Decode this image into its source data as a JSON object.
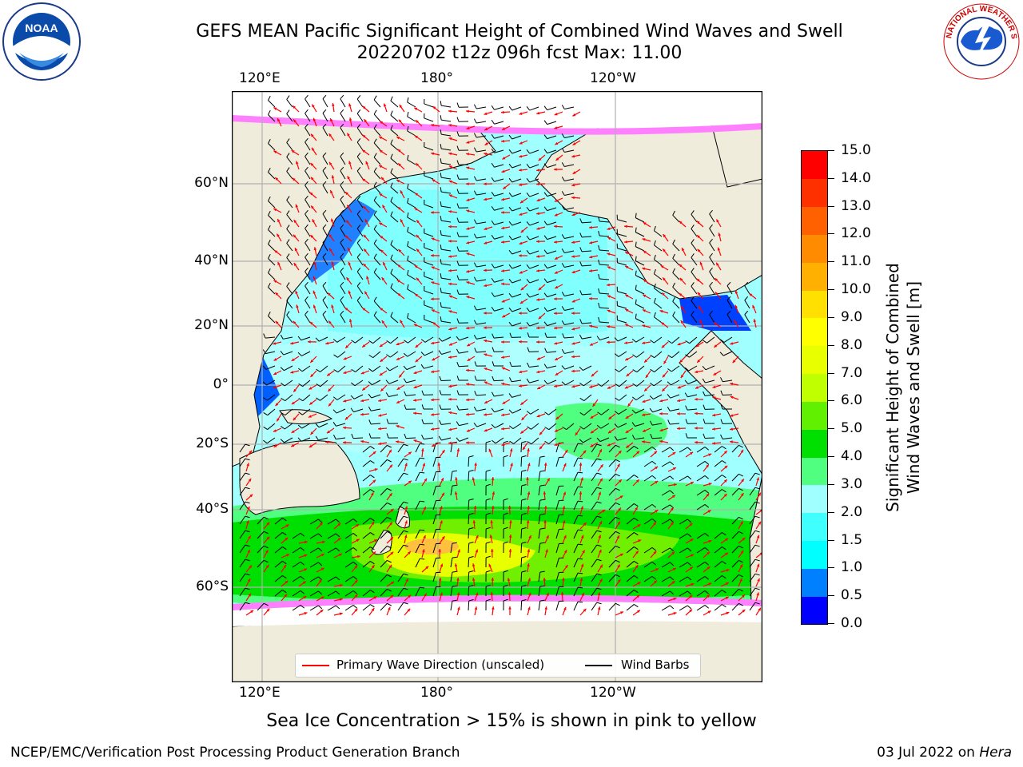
{
  "title_line1": "GEFS MEAN Pacific Significant Height of Combined Wind Waves and Swell",
  "title_line2": "20220702 t12z 096h fcst   Max: 11.00",
  "logos": {
    "left": {
      "name": "noaa-logo-icon",
      "text": "NOAA"
    },
    "right": {
      "name": "nws-logo-icon",
      "text": "NATIONAL WEATHER SERVICE"
    }
  },
  "map": {
    "lon_labels": [
      "120°E",
      "180°",
      "120°W"
    ],
    "lat_labels": [
      "60°N",
      "40°N",
      "20°N",
      "0°",
      "20°S",
      "40°S",
      "60°S"
    ],
    "legend": {
      "wave_direction": "Primary Wave Direction (unscaled)",
      "wind_barbs": "Wind Barbs"
    }
  },
  "colorbar": {
    "title_line1": "Significant Height of Combined",
    "title_line2": "Wind Waves and Swell [m]",
    "ticks": [
      "0.0",
      "0.5",
      "1.0",
      "1.5",
      "2.0",
      "3.0",
      "4.0",
      "5.0",
      "6.0",
      "7.0",
      "8.0",
      "9.0",
      "10.0",
      "11.0",
      "12.0",
      "13.0",
      "14.0",
      "15.0"
    ],
    "colors": [
      "#0000ff",
      "#0080ff",
      "#00ffff",
      "#40ffff",
      "#a0ffff",
      "#50ff80",
      "#00e000",
      "#60f000",
      "#c0ff00",
      "#e8ff00",
      "#ffff00",
      "#ffe000",
      "#ffb000",
      "#ff8c00",
      "#ff6000",
      "#ff3000",
      "#ff0000"
    ]
  },
  "ice_note": "Sea Ice Concentration > 15% is shown in pink to yellow",
  "footer": {
    "left": "NCEP/EMC/Verification Post Processing Product Generation Branch",
    "right_prefix": "03 Jul 2022 on ",
    "right_host": "Hera"
  },
  "colors": {
    "land": "#efecdc",
    "wave_arrow": "#ff0000",
    "wind_barb": "#000000",
    "ice": "#ff80ff"
  }
}
